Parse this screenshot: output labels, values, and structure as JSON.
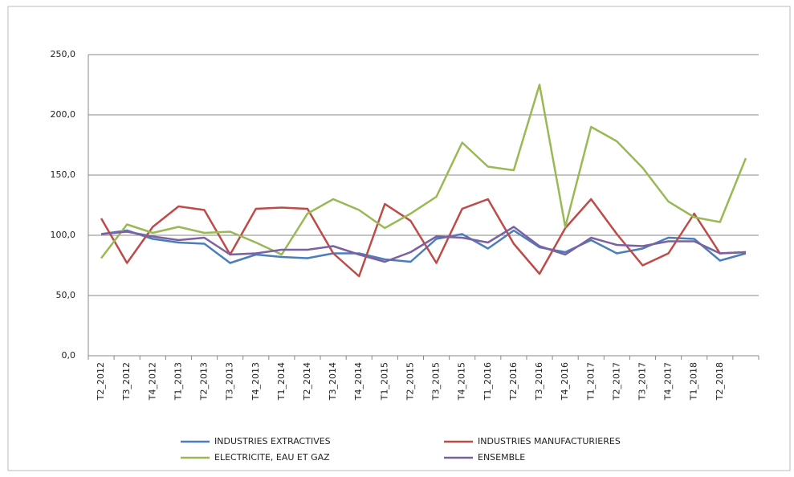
{
  "chart_data": {
    "type": "line",
    "categories": [
      "T2_2012",
      "T3_2012",
      "T4_2012",
      "T1_2013",
      "T2_2013",
      "T3_2013",
      "T4_2013",
      "T1_2014",
      "T2_2014",
      "T3_2014",
      "T4_2014",
      "T1_2015",
      "T2_2015",
      "T3_2015",
      "T4_2015",
      "T1_2016",
      "T2_2016",
      "T3_2016",
      "T4_2016",
      "T1_2017",
      "T2_2017",
      "T3_2017",
      "T4_2017",
      "T1_2018",
      "T2_2018",
      null
    ],
    "series": [
      {
        "name": "INDUSTRIES EXTRACTIVES",
        "color": "#4a7ebb",
        "values": [
          101,
          104,
          97,
          94,
          93,
          77,
          84,
          82,
          81,
          85,
          85,
          80,
          78,
          97,
          101,
          89,
          104,
          90,
          86,
          96,
          85,
          89,
          98,
          97,
          79,
          85
        ]
      },
      {
        "name": "INDUSTRIES MANUFACTURIERES",
        "color": "#be4b48",
        "values": [
          114,
          77,
          107,
          124,
          121,
          84,
          122,
          123,
          122,
          85,
          66,
          126,
          112,
          77,
          122,
          130,
          93,
          68,
          106,
          130,
          101,
          75,
          85,
          118,
          85,
          86
        ]
      },
      {
        "name": "ELECTRICITE, EAU ET GAZ",
        "color": "#98b954",
        "values": [
          81,
          109,
          102,
          107,
          102,
          103,
          94,
          84,
          118,
          130,
          121,
          106,
          118,
          132,
          177,
          157,
          154,
          225,
          107,
          190,
          178,
          156,
          128,
          115,
          111,
          164
        ]
      },
      {
        "name": "ENSEMBLE",
        "color": "#7d60a0",
        "values": [
          101,
          103,
          99,
          96,
          98,
          84,
          85,
          88,
          88,
          91,
          84,
          78,
          86,
          99,
          98,
          94,
          107,
          91,
          84,
          98,
          92,
          91,
          95,
          95,
          85,
          86
        ]
      }
    ],
    "ylim": [
      0,
      250
    ],
    "yticks": [
      {
        "value": 0,
        "label": "0,0"
      },
      {
        "value": 50,
        "label": "50,0"
      },
      {
        "value": 100,
        "label": "100,0"
      },
      {
        "value": 150,
        "label": "150,0"
      },
      {
        "value": 200,
        "label": "200,0"
      },
      {
        "value": 250,
        "label": "250,0"
      }
    ],
    "grid": true,
    "legend": "bottom"
  }
}
